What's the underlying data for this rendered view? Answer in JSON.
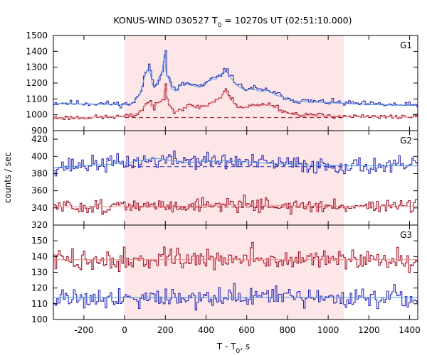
{
  "chart_data": {
    "type": "line",
    "title": "KONUS-WIND 030527 T",
    "title_sub": "0",
    "title_tail": " = 10270s UT (02:51:10.000)",
    "xlabel": "T - T",
    "xlabel_sub": "0",
    "xlabel_tail": ", s",
    "ylabel": "counts / sec",
    "xlim": [
      -350,
      1440
    ],
    "x_ticks": [
      -200,
      0,
      200,
      400,
      600,
      800,
      1000,
      1200,
      1400
    ],
    "shaded_interval": [
      0,
      1076
    ],
    "shade_color": "#fde6e8",
    "colors": {
      "raw_blue": "#2a2ab4",
      "raw_red": "#a01428",
      "model_blue": "#4c9be8",
      "model_red": "#f08c8c"
    },
    "bin_width": 8.192,
    "panels": [
      {
        "name": "G1",
        "ylim": [
          900,
          1500
        ],
        "y_ticks": [
          900,
          1000,
          1100,
          1200,
          1300,
          1400,
          1500
        ],
        "series": [
          {
            "color": "#2a2ab4",
            "style": "step",
            "background": 1070,
            "noise": 11,
            "seed": 11,
            "shape": [
              [
                -350,
                1075
              ],
              [
                -100,
                1070
              ],
              [
                0,
                1066
              ],
              [
                40,
                1075
              ],
              [
                75,
                1140
              ],
              [
                95,
                1240
              ],
              [
                110,
                1295
              ],
              [
                125,
                1275
              ],
              [
                140,
                1180
              ],
              [
                155,
                1200
              ],
              [
                170,
                1245
              ],
              [
                185,
                1280
              ],
              [
                195,
                1360
              ],
              [
                205,
                1255
              ],
              [
                215,
                1240
              ],
              [
                230,
                1170
              ],
              [
                250,
                1155
              ],
              [
                270,
                1185
              ],
              [
                300,
                1200
              ],
              [
                330,
                1190
              ],
              [
                360,
                1180
              ],
              [
                390,
                1185
              ],
              [
                420,
                1230
              ],
              [
                450,
                1230
              ],
              [
                480,
                1270
              ],
              [
                500,
                1280
              ],
              [
                520,
                1240
              ],
              [
                550,
                1195
              ],
              [
                590,
                1160
              ],
              [
                630,
                1170
              ],
              [
                670,
                1150
              ],
              [
                700,
                1160
              ],
              [
                740,
                1130
              ],
              [
                780,
                1115
              ],
              [
                830,
                1090
              ],
              [
                900,
                1085
              ],
              [
                1000,
                1080
              ],
              [
                1100,
                1072
              ],
              [
                1250,
                1065
              ],
              [
                1440,
                1060
              ]
            ],
            "spikes": [
              [
                200,
                1405
              ],
              [
                120,
                1320
              ],
              [
                505,
                1290
              ]
            ]
          },
          {
            "color": "#4c9be8",
            "style": "smooth",
            "shape": [
              [
                -350,
                1070
              ],
              [
                -100,
                1067
              ],
              [
                0,
                1064
              ],
              [
                40,
                1072
              ],
              [
                75,
                1130
              ],
              [
                95,
                1225
              ],
              [
                110,
                1285
              ],
              [
                125,
                1265
              ],
              [
                140,
                1175
              ],
              [
                155,
                1195
              ],
              [
                170,
                1240
              ],
              [
                185,
                1275
              ],
              [
                195,
                1395
              ],
              [
                205,
                1250
              ],
              [
                215,
                1235
              ],
              [
                230,
                1165
              ],
              [
                250,
                1150
              ],
              [
                270,
                1180
              ],
              [
                300,
                1195
              ],
              [
                330,
                1185
              ],
              [
                360,
                1175
              ],
              [
                390,
                1180
              ],
              [
                420,
                1225
              ],
              [
                450,
                1225
              ],
              [
                480,
                1265
              ],
              [
                500,
                1275
              ],
              [
                520,
                1235
              ],
              [
                550,
                1190
              ],
              [
                590,
                1155
              ],
              [
                630,
                1165
              ],
              [
                670,
                1145
              ],
              [
                700,
                1155
              ],
              [
                740,
                1125
              ],
              [
                780,
                1110
              ],
              [
                830,
                1088
              ],
              [
                900,
                1082
              ],
              [
                1000,
                1077
              ],
              [
                1100,
                1070
              ],
              [
                1250,
                1063
              ],
              [
                1440,
                1058
              ]
            ],
            "spikes": []
          },
          {
            "color": "#a01428",
            "style": "step",
            "background": 985,
            "noise": 9,
            "seed": 23,
            "shape": [
              [
                -350,
                980
              ],
              [
                -100,
                985
              ],
              [
                0,
                990
              ],
              [
                40,
                995
              ],
              [
                75,
                1020
              ],
              [
                100,
                1070
              ],
              [
                120,
                1080
              ],
              [
                140,
                1040
              ],
              [
                160,
                1075
              ],
              [
                185,
                1090
              ],
              [
                200,
                1130
              ],
              [
                215,
                1080
              ],
              [
                240,
                1020
              ],
              [
                280,
                1040
              ],
              [
                320,
                1060
              ],
              [
                360,
                1050
              ],
              [
                400,
                1060
              ],
              [
                440,
                1090
              ],
              [
                470,
                1110
              ],
              [
                495,
                1160
              ],
              [
                515,
                1110
              ],
              [
                550,
                1060
              ],
              [
                580,
                1045
              ],
              [
                620,
                1060
              ],
              [
                660,
                1060
              ],
              [
                700,
                1070
              ],
              [
                740,
                1055
              ],
              [
                780,
                1020
              ],
              [
                830,
                1005
              ],
              [
                900,
                1000
              ],
              [
                1000,
                995
              ],
              [
                1100,
                990
              ],
              [
                1250,
                985
              ],
              [
                1440,
                990
              ]
            ],
            "spikes": [
              [
                200,
                1195
              ],
              [
                125,
                1090
              ]
            ]
          },
          {
            "color": "#f08c8c",
            "style": "smooth",
            "shape": [
              [
                -350,
                982
              ],
              [
                0,
                988
              ],
              [
                75,
                1015
              ],
              [
                100,
                1060
              ],
              [
                120,
                1075
              ],
              [
                140,
                1035
              ],
              [
                160,
                1070
              ],
              [
                185,
                1085
              ],
              [
                200,
                1185
              ],
              [
                215,
                1075
              ],
              [
                240,
                1015
              ],
              [
                280,
                1035
              ],
              [
                320,
                1055
              ],
              [
                360,
                1045
              ],
              [
                400,
                1055
              ],
              [
                440,
                1085
              ],
              [
                470,
                1105
              ],
              [
                495,
                1150
              ],
              [
                515,
                1105
              ],
              [
                550,
                1055
              ],
              [
                580,
                1040
              ],
              [
                620,
                1055
              ],
              [
                660,
                1055
              ],
              [
                700,
                1065
              ],
              [
                740,
                1050
              ],
              [
                780,
                1015
              ],
              [
                830,
                1000
              ],
              [
                900,
                996
              ],
              [
                1000,
                992
              ],
              [
                1100,
                988
              ],
              [
                1440,
                986
              ]
            ],
            "spikes": []
          }
        ],
        "dashed": [
          {
            "color": "#a01428",
            "from": 0,
            "to": 1076,
            "y": 982
          }
        ]
      },
      {
        "name": "G2",
        "ylim": [
          320,
          430
        ],
        "y_ticks": [
          320,
          340,
          360,
          380,
          400,
          420
        ],
        "series": [
          {
            "color": "#2a2ab4",
            "style": "step",
            "noise": 6,
            "seed": 37,
            "shape": [
              [
                -350,
                388
              ],
              [
                0,
                393
              ],
              [
                200,
                396
              ],
              [
                400,
                395
              ],
              [
                600,
                393
              ],
              [
                800,
                391
              ],
              [
                1000,
                389
              ],
              [
                1200,
                389
              ],
              [
                1440,
                388
              ]
            ],
            "spikes": []
          },
          {
            "color": "#4c9be8",
            "style": "smooth",
            "shape": [
              [
                -350,
                387
              ],
              [
                0,
                392
              ],
              [
                150,
                398
              ],
              [
                300,
                393
              ],
              [
                500,
                395
              ],
              [
                700,
                392
              ],
              [
                900,
                390
              ],
              [
                1100,
                389
              ],
              [
                1440,
                389
              ]
            ],
            "spikes": []
          },
          {
            "color": "#a01428",
            "style": "step",
            "noise": 5,
            "seed": 51,
            "shape": [
              [
                -350,
                341
              ],
              [
                0,
                342
              ],
              [
                200,
                342
              ],
              [
                400,
                344
              ],
              [
                600,
                345
              ],
              [
                800,
                342
              ],
              [
                1000,
                341
              ],
              [
                1200,
                343
              ],
              [
                1440,
                342
              ]
            ],
            "spikes": []
          },
          {
            "color": "#f08c8c",
            "style": "smooth",
            "shape": [
              [
                -350,
                341
              ],
              [
                300,
                342
              ],
              [
                600,
                344
              ],
              [
                900,
                342
              ],
              [
                1440,
                342
              ]
            ],
            "spikes": []
          }
        ],
        "dashed": [
          {
            "color": "#2a2ab4",
            "from": 0,
            "to": 1076,
            "y": 388
          },
          {
            "color": "#a01428",
            "from": 0,
            "to": 1076,
            "y": 341
          }
        ]
      },
      {
        "name": "G3",
        "ylim": [
          100,
          160
        ],
        "y_ticks": [
          100,
          110,
          120,
          130,
          140,
          150
        ],
        "series": [
          {
            "color": "#a01428",
            "style": "step",
            "noise": 4,
            "seed": 73,
            "shape": [
              [
                -350,
                138
              ],
              [
                0,
                137
              ],
              [
                200,
                138
              ],
              [
                400,
                138
              ],
              [
                600,
                138
              ],
              [
                800,
                138
              ],
              [
                1000,
                138
              ],
              [
                1200,
                138
              ],
              [
                1440,
                138
              ]
            ],
            "spikes": [
              [
                625,
                149
              ],
              [
                -5,
                146
              ]
            ]
          },
          {
            "color": "#f08c8c",
            "style": "smooth",
            "shape": [
              [
                -350,
                138
              ],
              [
                300,
                138
              ],
              [
                700,
                138
              ],
              [
                1440,
                138
              ]
            ],
            "spikes": []
          },
          {
            "color": "#2a2ab4",
            "style": "step",
            "noise": 4,
            "seed": 91,
            "shape": [
              [
                -350,
                114
              ],
              [
                0,
                114
              ],
              [
                300,
                114
              ],
              [
                600,
                114
              ],
              [
                900,
                114
              ],
              [
                1200,
                114
              ],
              [
                1440,
                114
              ]
            ],
            "spikes": []
          },
          {
            "color": "#4c9be8",
            "style": "smooth",
            "shape": [
              [
                -350,
                114
              ],
              [
                400,
                114
              ],
              [
                900,
                114
              ],
              [
                1440,
                114
              ]
            ],
            "spikes": []
          }
        ],
        "dashed": []
      }
    ]
  }
}
